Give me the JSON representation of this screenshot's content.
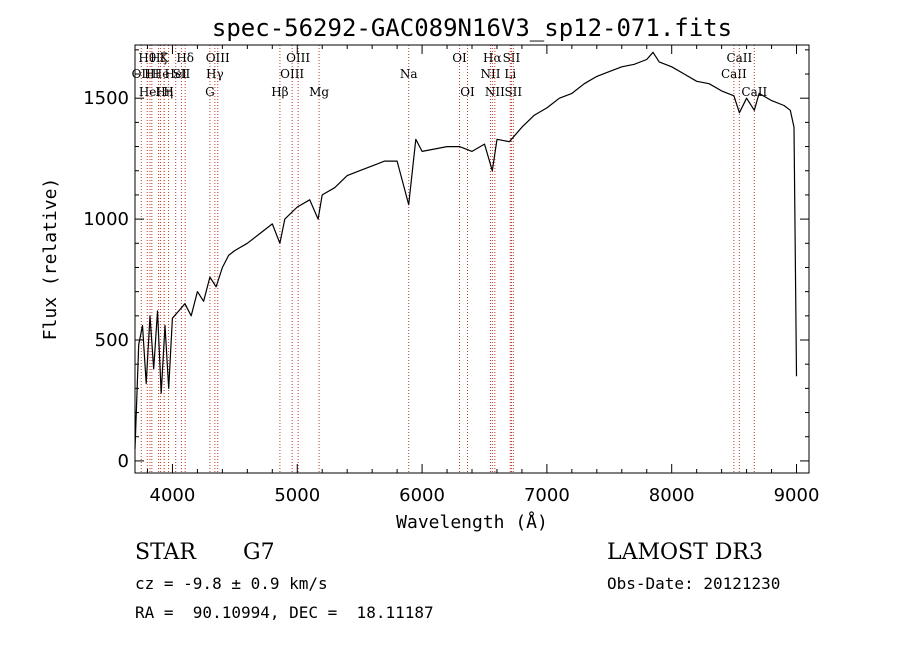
{
  "chart_data": {
    "type": "line",
    "title": "spec-56292-GAC089N16V3_sp12-071.fits",
    "xlabel": "Wavelength (Å)",
    "ylabel": "Flux (relative)",
    "xlim": [
      3700,
      9100
    ],
    "ylim": [
      -50,
      1720
    ],
    "xticks": [
      4000,
      5000,
      6000,
      7000,
      8000,
      9000
    ],
    "yticks": [
      0,
      500,
      1000,
      1500
    ],
    "line_color": "#000000",
    "marker_color": "#c0392b",
    "series": [
      {
        "name": "flux",
        "x": [
          3700,
          3730,
          3760,
          3790,
          3820,
          3850,
          3880,
          3910,
          3940,
          3970,
          4000,
          4050,
          4100,
          4150,
          4200,
          4250,
          4300,
          4350,
          4400,
          4450,
          4500,
          4600,
          4700,
          4800,
          4861,
          4900,
          5000,
          5100,
          5167,
          5200,
          5300,
          5400,
          5500,
          5600,
          5700,
          5800,
          5893,
          5950,
          6000,
          6100,
          6200,
          6300,
          6400,
          6500,
          6563,
          6600,
          6700,
          6800,
          6900,
          7000,
          7100,
          7200,
          7300,
          7400,
          7500,
          7600,
          7700,
          7800,
          7850,
          7900,
          8000,
          8100,
          8200,
          8300,
          8400,
          8498,
          8542,
          8600,
          8662,
          8700,
          8800,
          8900,
          8950,
          8980,
          9000
        ],
        "y": [
          50,
          480,
          560,
          320,
          600,
          380,
          620,
          280,
          560,
          300,
          590,
          620,
          650,
          600,
          700,
          660,
          760,
          720,
          800,
          850,
          870,
          900,
          940,
          980,
          900,
          1000,
          1050,
          1080,
          1000,
          1100,
          1130,
          1180,
          1200,
          1220,
          1240,
          1240,
          1060,
          1330,
          1280,
          1290,
          1300,
          1300,
          1280,
          1310,
          1200,
          1330,
          1320,
          1380,
          1430,
          1460,
          1500,
          1520,
          1560,
          1590,
          1610,
          1630,
          1640,
          1660,
          1690,
          1650,
          1630,
          1600,
          1570,
          1560,
          1530,
          1510,
          1440,
          1500,
          1450,
          1520,
          1490,
          1470,
          1450,
          1380,
          350
        ]
      }
    ],
    "markers": [
      {
        "wave": 3750,
        "label": "OII",
        "row": 2
      },
      {
        "wave": 3798,
        "label": "Hθ",
        "row": 1
      },
      {
        "wave": 3820,
        "label": "HeI",
        "row": 3
      },
      {
        "wave": 3835,
        "label": "HI",
        "row": 2
      },
      {
        "wave": 3889,
        "label": "Hζ",
        "row": 1
      },
      {
        "wave": 3905,
        "label": "He",
        "row": 2
      },
      {
        "wave": 3933,
        "label": "K",
        "row": 1
      },
      {
        "wave": 3934,
        "label": "Hη",
        "row": 3
      },
      {
        "wave": 3969,
        "label": "H",
        "row": 3
      },
      {
        "wave": 4026,
        "label": "HeI",
        "row": 2
      },
      {
        "wave": 4072,
        "label": "SII",
        "row": 2
      },
      {
        "wave": 4102,
        "label": "Hδ",
        "row": 1
      },
      {
        "wave": 4300,
        "label": "G",
        "row": 3
      },
      {
        "wave": 4340,
        "label": "Hγ",
        "row": 2
      },
      {
        "wave": 4363,
        "label": "OIII",
        "row": 1
      },
      {
        "wave": 4861,
        "label": "Hβ",
        "row": 3
      },
      {
        "wave": 4959,
        "label": "OIII",
        "row": 2
      },
      {
        "wave": 5007,
        "label": "OIII",
        "row": 1
      },
      {
        "wave": 5175,
        "label": "Mg",
        "row": 3
      },
      {
        "wave": 5893,
        "label": "Na",
        "row": 2
      },
      {
        "wave": 6300,
        "label": "OI",
        "row": 1
      },
      {
        "wave": 6364,
        "label": "OI",
        "row": 3
      },
      {
        "wave": 6548,
        "label": "NII",
        "row": 2
      },
      {
        "wave": 6563,
        "label": "Hα",
        "row": 1
      },
      {
        "wave": 6583,
        "label": "NII",
        "row": 3
      },
      {
        "wave": 6707,
        "label": "Li",
        "row": 2
      },
      {
        "wave": 6716,
        "label": "SII",
        "row": 1
      },
      {
        "wave": 6731,
        "label": "SII",
        "row": 3
      },
      {
        "wave": 8498,
        "label": "CaII",
        "row": 2
      },
      {
        "wave": 8542,
        "label": "CaII",
        "row": 1
      },
      {
        "wave": 8662,
        "label": "CaII",
        "row": 3
      }
    ]
  },
  "info": {
    "object_type": "STAR",
    "subclass": "G7",
    "survey": "LAMOST DR3",
    "redshift": "cz = -9.8 ± 0.9 km/s",
    "obs_date": "Obs-Date: 20121230",
    "coords": "RA =  90.10994, DEC =  18.11187"
  }
}
